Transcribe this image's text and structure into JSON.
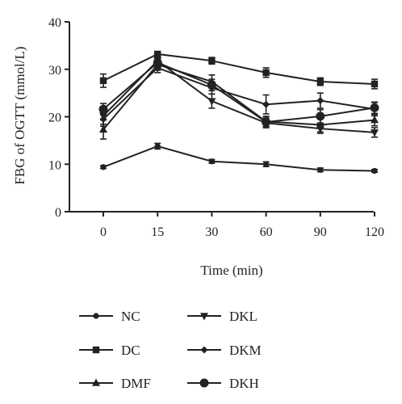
{
  "chart_data": {
    "type": "line",
    "title": "",
    "xlabel": "Time (min)",
    "ylabel": "FBG of OGTT (mmol/L)",
    "categories": [
      "0",
      "15",
      "30",
      "60",
      "90",
      "120"
    ],
    "ylim": [
      0,
      40
    ],
    "yticks": [
      0,
      10,
      20,
      30,
      40
    ],
    "grid": false,
    "legend_position": "bottom",
    "legend_columns": 2,
    "series": [
      {
        "name": "NC",
        "marker": "circle-small",
        "values": [
          9.4,
          13.8,
          10.6,
          10.0,
          8.8,
          8.6
        ],
        "errors": [
          0.3,
          0.6,
          0.4,
          0.5,
          0.4,
          0.3
        ]
      },
      {
        "name": "DC",
        "marker": "square",
        "values": [
          27.6,
          33.2,
          31.8,
          29.3,
          27.4,
          26.9
        ],
        "errors": [
          1.4,
          0.5,
          0.7,
          1.0,
          0.8,
          1.0
        ]
      },
      {
        "name": "DMF",
        "marker": "triangle-up",
        "values": [
          17.3,
          31.0,
          27.4,
          19.0,
          18.3,
          19.3
        ],
        "errors": [
          2.0,
          1.2,
          1.4,
          1.0,
          1.5,
          1.2
        ]
      },
      {
        "name": "DKL",
        "marker": "triangle-down",
        "values": [
          20.2,
          31.8,
          23.3,
          18.7,
          17.5,
          16.7
        ],
        "errors": [
          1.8,
          0.9,
          1.5,
          1.0,
          1.0,
          1.0
        ]
      },
      {
        "name": "DKM",
        "marker": "diamond",
        "values": [
          19.5,
          30.3,
          26.1,
          22.6,
          23.4,
          21.6
        ],
        "errors": [
          1.5,
          1.0,
          1.3,
          2.0,
          1.6,
          1.4
        ]
      },
      {
        "name": "DKH",
        "marker": "circle-large",
        "values": [
          21.6,
          31.4,
          26.7,
          18.9,
          20.1,
          21.9
        ],
        "errors": [
          1.2,
          1.0,
          1.2,
          1.2,
          1.4,
          1.2
        ]
      }
    ]
  }
}
